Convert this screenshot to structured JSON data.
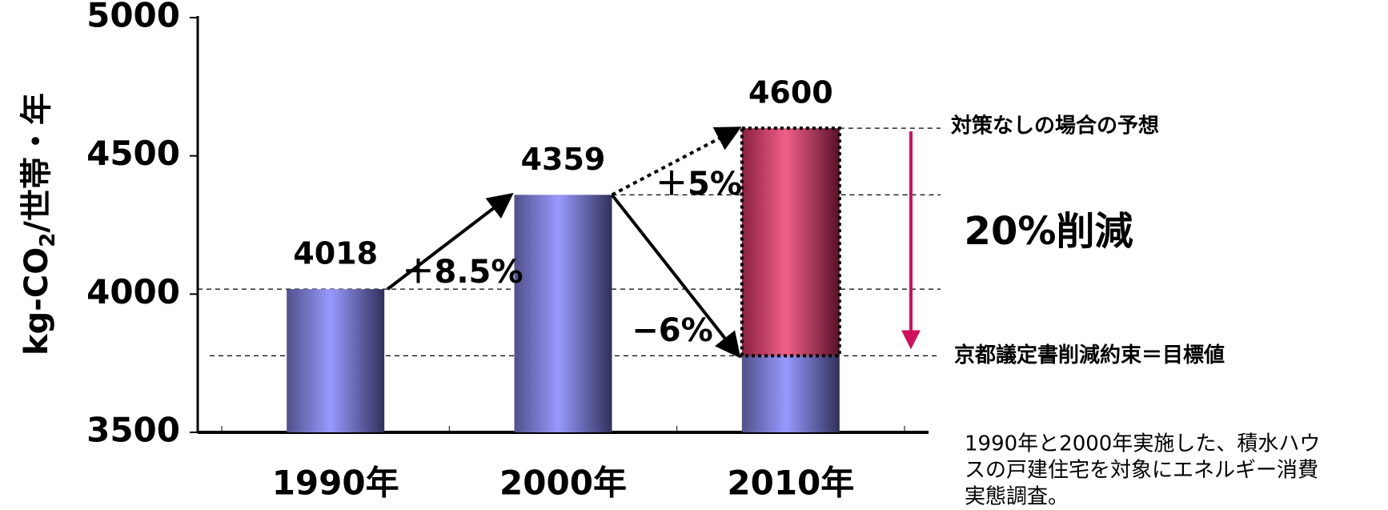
{
  "chart_data": {
    "type": "bar",
    "categories": [
      "1990年",
      "2000年",
      "2010年"
    ],
    "series": [
      {
        "values": [
          4018,
          4359,
          3777
        ],
        "color": "#9999ff"
      }
    ],
    "projection": {
      "value": 4600,
      "color": "#f06088",
      "category": 2
    },
    "data_labels": [
      4018,
      4359,
      4600
    ],
    "ylim": [
      3500,
      5000
    ],
    "yticks": [
      3500,
      4000,
      4500,
      5000
    ],
    "y_label": [
      "kg-CO",
      "2",
      "/世帯・年"
    ],
    "annotations": {
      "rise_1990_2000": "＋8.5%",
      "rise_2000_2010": "＋5%",
      "target_drop": "−6%",
      "reduction": "20%削減",
      "projection_label": "対策なしの場合の予想",
      "target_label": "京都議定書削減約束＝目標値"
    },
    "note": [
      "1990年と2000年実施した、積水ハウ",
      "スの戸建住宅を対象にエネルギー消費",
      "実態調査。"
    ]
  }
}
